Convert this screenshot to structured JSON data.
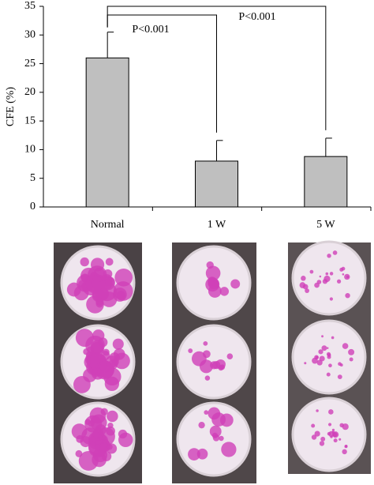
{
  "chart_data": {
    "type": "bar",
    "y_label": "CFE (%)",
    "categories": [
      "Normal",
      "1 W",
      "5 W"
    ],
    "values": [
      26,
      8,
      8.8
    ],
    "errors": [
      4.5,
      3.6,
      3.2
    ],
    "color": "#bfbfbf",
    "ylim": [
      0,
      35
    ],
    "yticks": [
      0,
      5,
      10,
      15,
      20,
      25,
      30,
      35
    ],
    "annotations": [
      "P<0.001",
      "P<0.001"
    ]
  }
}
